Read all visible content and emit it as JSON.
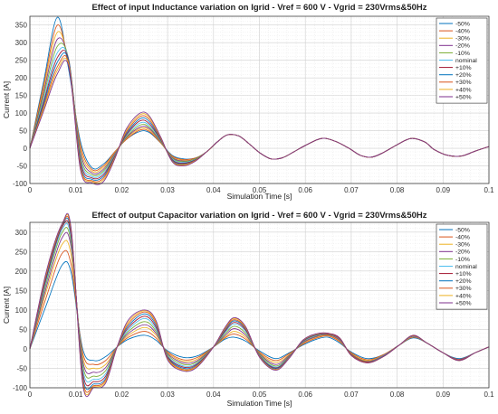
{
  "chart_data": [
    {
      "type": "line",
      "title": "Effect of input Inductance variation on Igrid - Vref = 600 V - Vgrid = 230Vrms&50Hz",
      "xlabel": "Simulation Time [s]",
      "ylabel": "Current [A]",
      "xlim": [
        0,
        0.1
      ],
      "ylim": [
        -100,
        375
      ],
      "xticks": [
        "0",
        "0.01",
        "0.02",
        "0.03",
        "0.04",
        "0.05",
        "0.06",
        "0.07",
        "0.08",
        "0.09",
        "0.1"
      ],
      "yticks": [
        "-100",
        "-50",
        "0",
        "50",
        "100",
        "150",
        "200",
        "250",
        "300",
        "350"
      ],
      "grid": true,
      "minor_grid": true,
      "legend_position": "top-right",
      "x": [
        0,
        0.003,
        0.006,
        0.0085,
        0.011,
        0.0135,
        0.016,
        0.0185,
        0.021,
        0.024,
        0.026,
        0.0285,
        0.031,
        0.0335,
        0.036,
        0.0385,
        0.041,
        0.043,
        0.0455,
        0.048,
        0.05,
        0.0525,
        0.055,
        0.0575,
        0.06,
        0.0635,
        0.0665,
        0.0695,
        0.072,
        0.0745,
        0.077,
        0.08,
        0.083,
        0.086,
        0.088,
        0.091,
        0.094,
        0.097,
        0.1
      ],
      "series": [
        {
          "name": "-50%",
          "color": "#0072bd",
          "values": [
            0,
            190,
            372,
            220,
            20,
            -55,
            -45,
            -10,
            25,
            48,
            45,
            15,
            -20,
            -30,
            -28,
            -10,
            20,
            38,
            35,
            10,
            -12,
            -30,
            -27,
            -10,
            8,
            28,
            20,
            0,
            -20,
            -25,
            -12,
            10,
            28,
            18,
            -3,
            -20,
            -22,
            -8,
            5
          ]
        },
        {
          "name": "-40%",
          "color": "#d95319",
          "values": [
            0,
            180,
            350,
            230,
            10,
            -60,
            -50,
            -10,
            25,
            52,
            48,
            15,
            -22,
            -32,
            -28,
            -10,
            20,
            38,
            35,
            10,
            -12,
            -30,
            -27,
            -10,
            8,
            28,
            20,
            0,
            -20,
            -25,
            -12,
            10,
            28,
            18,
            -3,
            -20,
            -22,
            -8,
            5
          ]
        },
        {
          "name": "-30%",
          "color": "#edb120",
          "values": [
            0,
            170,
            330,
            240,
            0,
            -65,
            -55,
            -12,
            28,
            56,
            52,
            16,
            -24,
            -34,
            -30,
            -10,
            20,
            38,
            35,
            10,
            -12,
            -30,
            -27,
            -10,
            8,
            28,
            20,
            0,
            -20,
            -25,
            -12,
            10,
            28,
            18,
            -3,
            -20,
            -22,
            -8,
            5
          ]
        },
        {
          "name": "-20%",
          "color": "#7e2f8e",
          "values": [
            0,
            160,
            310,
            245,
            -10,
            -70,
            -60,
            -15,
            30,
            60,
            56,
            18,
            -26,
            -36,
            -30,
            -10,
            20,
            38,
            35,
            10,
            -12,
            -30,
            -27,
            -10,
            8,
            28,
            20,
            0,
            -20,
            -25,
            -12,
            10,
            28,
            18,
            -3,
            -20,
            -22,
            -8,
            5
          ]
        },
        {
          "name": "-10%",
          "color": "#77ac30",
          "values": [
            0,
            150,
            290,
            250,
            -20,
            -75,
            -65,
            -18,
            32,
            66,
            60,
            20,
            -28,
            -38,
            -30,
            -10,
            20,
            38,
            35,
            10,
            -12,
            -30,
            -27,
            -10,
            8,
            28,
            20,
            0,
            -20,
            -25,
            -12,
            10,
            28,
            18,
            -3,
            -20,
            -22,
            -8,
            5
          ]
        },
        {
          "name": "nominal",
          "color": "#4dbeee",
          "values": [
            0,
            140,
            272,
            250,
            -28,
            -80,
            -70,
            -20,
            35,
            72,
            65,
            22,
            -30,
            -40,
            -32,
            -10,
            20,
            38,
            35,
            10,
            -12,
            -30,
            -27,
            -10,
            8,
            28,
            20,
            0,
            -20,
            -25,
            -12,
            10,
            28,
            18,
            -3,
            -20,
            -22,
            -8,
            5
          ]
        },
        {
          "name": "+10%",
          "color": "#a2142f",
          "values": [
            0,
            132,
            258,
            248,
            -36,
            -84,
            -75,
            -22,
            38,
            78,
            70,
            24,
            -32,
            -42,
            -33,
            -10,
            20,
            38,
            35,
            10,
            -12,
            -30,
            -27,
            -10,
            8,
            28,
            20,
            0,
            -20,
            -25,
            -12,
            10,
            28,
            18,
            -3,
            -20,
            -22,
            -8,
            5
          ]
        },
        {
          "name": "+20%",
          "color": "#0072bd",
          "values": [
            0,
            125,
            245,
            245,
            -44,
            -88,
            -80,
            -24,
            42,
            84,
            76,
            26,
            -34,
            -44,
            -34,
            -10,
            20,
            38,
            35,
            10,
            -12,
            -30,
            -27,
            -10,
            8,
            28,
            20,
            0,
            -20,
            -25,
            -12,
            10,
            28,
            18,
            -3,
            -20,
            -22,
            -8,
            5
          ]
        },
        {
          "name": "+30%",
          "color": "#d95319",
          "values": [
            0,
            118,
            232,
            240,
            -50,
            -92,
            -85,
            -26,
            46,
            90,
            82,
            28,
            -36,
            -46,
            -35,
            -10,
            20,
            38,
            35,
            10,
            -12,
            -30,
            -27,
            -10,
            8,
            28,
            20,
            0,
            -20,
            -25,
            -12,
            10,
            28,
            18,
            -3,
            -20,
            -22,
            -8,
            5
          ]
        },
        {
          "name": "+40%",
          "color": "#edb120",
          "values": [
            0,
            112,
            222,
            235,
            -55,
            -95,
            -90,
            -28,
            50,
            95,
            88,
            30,
            -37,
            -48,
            -36,
            -10,
            20,
            38,
            35,
            10,
            -12,
            -30,
            -27,
            -10,
            8,
            28,
            20,
            0,
            -20,
            -25,
            -12,
            10,
            28,
            18,
            -3,
            -20,
            -22,
            -8,
            5
          ]
        },
        {
          "name": "+50%",
          "color": "#7e2f8e",
          "values": [
            0,
            106,
            212,
            230,
            -60,
            -98,
            -95,
            -30,
            55,
            100,
            92,
            32,
            -38,
            -50,
            -37,
            -10,
            20,
            38,
            35,
            10,
            -12,
            -30,
            -27,
            -10,
            8,
            28,
            20,
            0,
            -20,
            -25,
            -12,
            10,
            28,
            18,
            -3,
            -20,
            -22,
            -8,
            5
          ]
        }
      ]
    },
    {
      "type": "line",
      "title": "Effect of output Capacitor variation on Igrid - Vref = 600 V - Vgrid = 230Vrms&50Hz",
      "xlabel": "Simulation Time [s]",
      "ylabel": "Current [A]",
      "xlim": [
        0,
        0.1
      ],
      "ylim": [
        -100,
        325
      ],
      "xticks": [
        "0",
        "0.01",
        "0.02",
        "0.03",
        "0.04",
        "0.05",
        "0.06",
        "0.07",
        "0.08",
        "0.09",
        "0.1"
      ],
      "yticks": [
        "-100",
        "-50",
        "0",
        "50",
        "100",
        "150",
        "200",
        "250",
        "300"
      ],
      "grid": true,
      "minor_grid": true,
      "legend_position": "top-right",
      "x": [
        0,
        0.0035,
        0.007,
        0.009,
        0.0115,
        0.014,
        0.0165,
        0.019,
        0.0215,
        0.025,
        0.0275,
        0.03,
        0.0335,
        0.0365,
        0.04,
        0.0425,
        0.0445,
        0.047,
        0.05,
        0.0535,
        0.0565,
        0.0595,
        0.0625,
        0.065,
        0.0675,
        0.07,
        0.0735,
        0.077,
        0.0805,
        0.0835,
        0.0865,
        0.09,
        0.0935,
        0.097,
        0.1
      ],
      "series": [
        {
          "name": "-50%",
          "color": "#0072bd",
          "values": [
            0,
            110,
            215,
            195,
            0,
            -30,
            -20,
            5,
            25,
            35,
            22,
            -5,
            -22,
            -18,
            5,
            25,
            30,
            20,
            -5,
            -25,
            -10,
            10,
            25,
            30,
            15,
            -8,
            -25,
            -15,
            10,
            28,
            15,
            -10,
            -25,
            -10,
            5
          ]
        },
        {
          "name": "-40%",
          "color": "#d95319",
          "values": [
            0,
            130,
            245,
            215,
            -10,
            -40,
            -30,
            5,
            30,
            45,
            28,
            -8,
            -28,
            -22,
            5,
            28,
            38,
            25,
            -8,
            -30,
            -12,
            12,
            28,
            33,
            18,
            -10,
            -28,
            -15,
            10,
            30,
            15,
            -10,
            -27,
            -10,
            5
          ]
        },
        {
          "name": "-30%",
          "color": "#edb120",
          "values": [
            0,
            145,
            268,
            240,
            -20,
            -50,
            -40,
            5,
            35,
            55,
            35,
            -10,
            -32,
            -26,
            5,
            30,
            45,
            30,
            -10,
            -35,
            -15,
            14,
            30,
            35,
            20,
            -12,
            -30,
            -16,
            10,
            31,
            15,
            -10,
            -28,
            -10,
            5
          ]
        },
        {
          "name": "-20%",
          "color": "#7e2f8e",
          "values": [
            0,
            155,
            285,
            260,
            -30,
            -60,
            -48,
            5,
            40,
            62,
            40,
            -12,
            -36,
            -30,
            5,
            34,
            52,
            35,
            -12,
            -40,
            -17,
            16,
            32,
            36,
            22,
            -13,
            -32,
            -17,
            10,
            32,
            15,
            -10,
            -28,
            -10,
            5
          ]
        },
        {
          "name": "-10%",
          "color": "#77ac30",
          "values": [
            0,
            165,
            298,
            270,
            -40,
            -70,
            -56,
            5,
            45,
            70,
            45,
            -15,
            -40,
            -33,
            5,
            38,
            58,
            40,
            -14,
            -44,
            -19,
            18,
            34,
            37,
            24,
            -14,
            -33,
            -18,
            10,
            33,
            15,
            -10,
            -29,
            -10,
            5
          ]
        },
        {
          "name": "nominal",
          "color": "#4dbeee",
          "values": [
            0,
            172,
            306,
            280,
            -50,
            -78,
            -64,
            5,
            50,
            78,
            50,
            -18,
            -44,
            -36,
            5,
            42,
            64,
            45,
            -16,
            -47,
            -20,
            19,
            35,
            38,
            25,
            -15,
            -34,
            -18,
            10,
            33,
            15,
            -10,
            -29,
            -10,
            5
          ]
        },
        {
          "name": "+10%",
          "color": "#a2142f",
          "values": [
            0,
            178,
            312,
            288,
            -60,
            -84,
            -70,
            5,
            55,
            84,
            55,
            -20,
            -47,
            -38,
            5,
            45,
            68,
            48,
            -17,
            -49,
            -21,
            20,
            36,
            38,
            26,
            -15,
            -34,
            -19,
            10,
            34,
            15,
            -10,
            -29,
            -10,
            5
          ]
        },
        {
          "name": "+20%",
          "color": "#0072bd",
          "values": [
            0,
            184,
            316,
            295,
            -70,
            -90,
            -76,
            5,
            60,
            90,
            60,
            -22,
            -50,
            -40,
            5,
            48,
            72,
            51,
            -18,
            -51,
            -22,
            21,
            37,
            39,
            27,
            -16,
            -35,
            -19,
            10,
            34,
            15,
            -10,
            -30,
            -10,
            5
          ]
        },
        {
          "name": "+30%",
          "color": "#d95319",
          "values": [
            0,
            188,
            318,
            300,
            -78,
            -94,
            -80,
            5,
            65,
            95,
            65,
            -24,
            -53,
            -42,
            5,
            51,
            75,
            53,
            -19,
            -53,
            -23,
            22,
            38,
            39,
            27,
            -16,
            -35,
            -20,
            10,
            34,
            15,
            -10,
            -30,
            -10,
            5
          ]
        },
        {
          "name": "+40%",
          "color": "#edb120",
          "values": [
            0,
            192,
            320,
            305,
            -85,
            -97,
            -84,
            5,
            70,
            98,
            68,
            -26,
            -55,
            -44,
            5,
            53,
            78,
            55,
            -20,
            -54,
            -23,
            22,
            38,
            40,
            28,
            -17,
            -36,
            -20,
            10,
            35,
            15,
            -10,
            -30,
            -10,
            5
          ]
        },
        {
          "name": "+50%",
          "color": "#7e2f8e",
          "values": [
            0,
            195,
            321,
            308,
            -90,
            -99,
            -88,
            5,
            75,
            100,
            72,
            -28,
            -57,
            -46,
            5,
            55,
            80,
            57,
            -21,
            -55,
            -24,
            23,
            39,
            40,
            28,
            -17,
            -36,
            -20,
            10,
            35,
            15,
            -10,
            -30,
            -10,
            5
          ]
        }
      ]
    }
  ]
}
